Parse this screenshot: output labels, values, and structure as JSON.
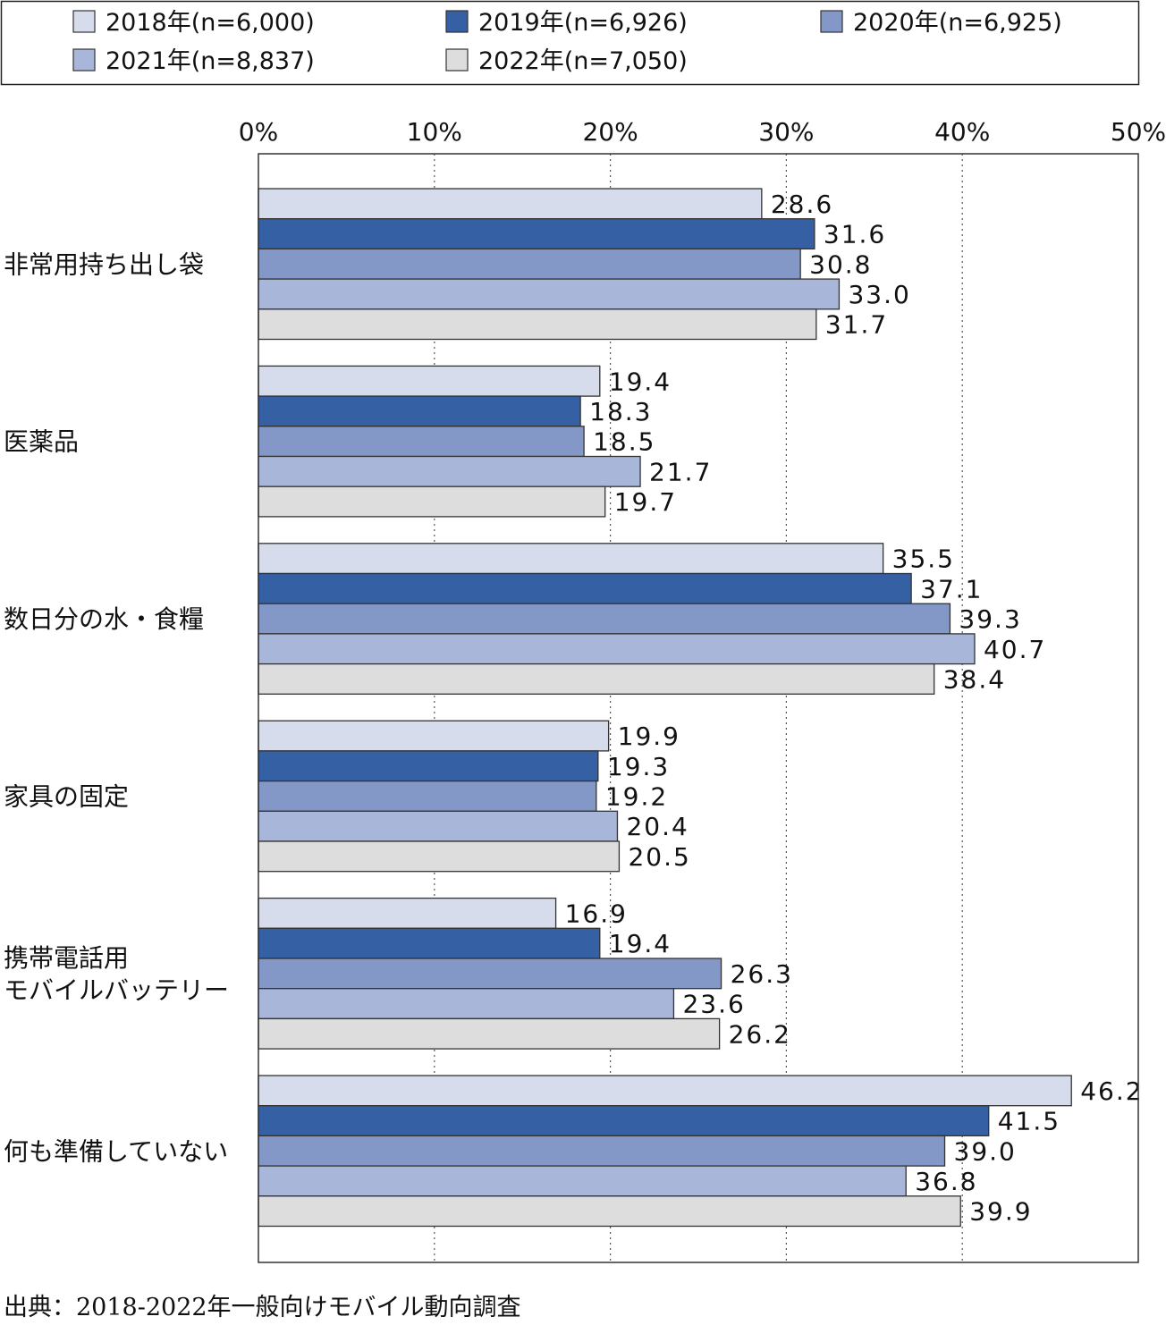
{
  "chart_data": {
    "type": "bar",
    "orientation": "horizontal",
    "categories": [
      "非常用持ち出し袋",
      "医薬品",
      "数日分の水・食糧",
      "家具の固定",
      "携帯電話用\nモバイルバッテリー",
      "何も準備していない"
    ],
    "series": [
      {
        "name": "2018年(n=6,000)",
        "color": "#d6dcec",
        "values": [
          28.6,
          19.4,
          35.5,
          19.9,
          16.9,
          46.2
        ]
      },
      {
        "name": "2019年(n=6,926)",
        "color": "#3560a3",
        "values": [
          31.6,
          18.3,
          37.1,
          19.3,
          19.4,
          41.5
        ]
      },
      {
        "name": "2020年(n=6,925)",
        "color": "#8398c6",
        "values": [
          30.8,
          18.5,
          39.3,
          19.2,
          26.3,
          39.0
        ]
      },
      {
        "name": "2021年(n=8,837)",
        "color": "#a8b6d9",
        "values": [
          33.0,
          21.7,
          40.7,
          20.4,
          23.6,
          36.8
        ]
      },
      {
        "name": "2022年(n=7,050)",
        "color": "#dddddd",
        "values": [
          31.7,
          19.7,
          38.4,
          20.5,
          26.2,
          39.9
        ]
      }
    ],
    "value_labels": [
      [
        "28.6",
        "19.4",
        "35.5",
        "19.9",
        "16.9",
        "46.2"
      ],
      [
        "31.6",
        "18.3",
        "37.1",
        "19.3",
        "19.4",
        "41.5"
      ],
      [
        "30.8",
        "18.5",
        "39.3",
        "19.2",
        "26.3",
        "39.0"
      ],
      [
        "33.0",
        "21.7",
        "40.7",
        "20.4",
        "23.6",
        "36.8"
      ],
      [
        "31.7",
        "19.7",
        "38.4",
        "20.5",
        "26.2",
        "39.9"
      ]
    ],
    "x_ticks": [
      0,
      10,
      20,
      30,
      40,
      50
    ],
    "x_tick_labels": [
      "0%",
      "10%",
      "20%",
      "30%",
      "40%",
      "50%"
    ],
    "xlim": [
      0,
      50
    ],
    "grid": "vertical dotted",
    "legend_position": "top"
  },
  "source_note": "出典：2018-2022年一般向けモバイル動向調査"
}
